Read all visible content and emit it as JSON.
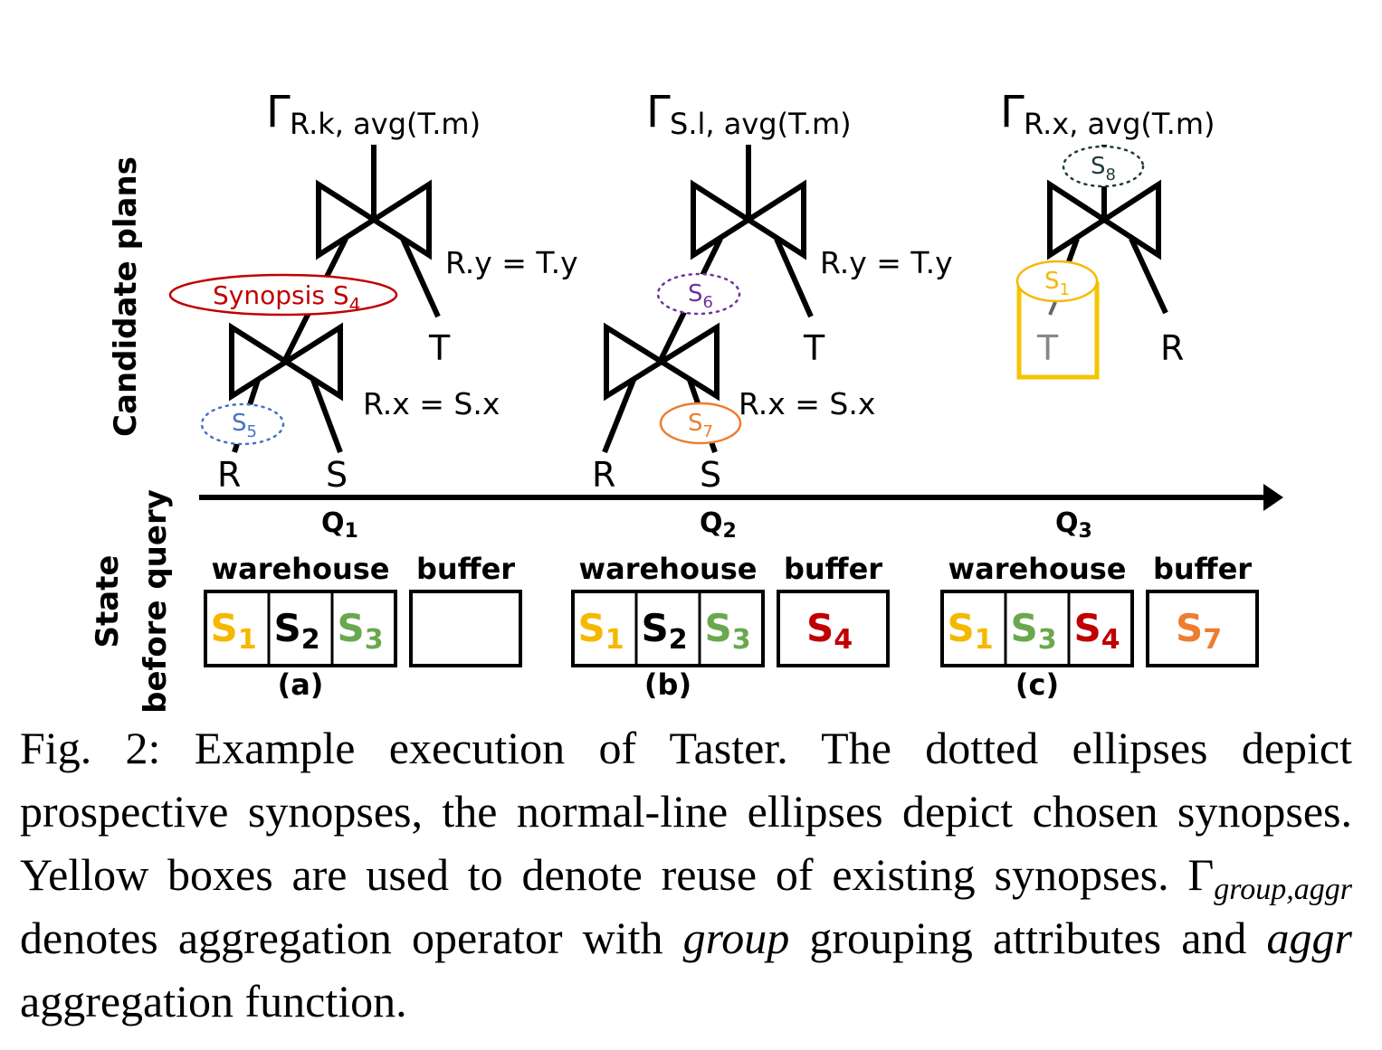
{
  "figure": {
    "side_labels": {
      "candidate_plans": "Candidate plans",
      "state_line1": "State",
      "state_line2": "before query"
    },
    "plans": [
      {
        "gamma": "Γ",
        "agg_label": "R.k, avg(T.m)",
        "top_condition": "R.y = T.y",
        "top_right_leaf": "T",
        "chosen_synopsis": "Synopsis S",
        "chosen_synopsis_sub": "4",
        "bottom_condition": "R.x = S.x",
        "prospective_synopsis": "S",
        "prospective_synopsis_sub": "5",
        "leaf_left": "R",
        "leaf_right": "S"
      },
      {
        "gamma": "Γ",
        "agg_label": "S.l, avg(T.m)",
        "top_condition": "R.y = T.y",
        "top_right_leaf": "T",
        "prospective_synopsis": "S",
        "prospective_synopsis_sub": "6",
        "chosen_synopsis": "S",
        "chosen_synopsis_sub": "7",
        "bottom_condition": "R.x = S.x",
        "leaf_left": "R",
        "leaf_right": "S"
      },
      {
        "gamma": "Γ",
        "agg_label": "R.x, avg(T.m)",
        "prospective_synopsis": "S",
        "prospective_synopsis_sub": "8",
        "reused_synopsis": "S",
        "reused_synopsis_sub": "1",
        "reused_leaf": "T",
        "right_leaf": "R"
      }
    ],
    "queries": [
      {
        "label": "Q",
        "sub": "1"
      },
      {
        "label": "Q",
        "sub": "2"
      },
      {
        "label": "Q",
        "sub": "3"
      }
    ],
    "states": [
      {
        "warehouse_label": "warehouse",
        "buffer_label": "buffer",
        "warehouse_items": [
          {
            "label": "S",
            "sub": "1",
            "color": "#F5B800"
          },
          {
            "label": "S",
            "sub": "2",
            "color": "#000000"
          },
          {
            "label": "S",
            "sub": "3",
            "color": "#6AA84F"
          }
        ],
        "buffer_items": [],
        "panel_label": "(a)"
      },
      {
        "warehouse_label": "warehouse",
        "buffer_label": "buffer",
        "warehouse_items": [
          {
            "label": "S",
            "sub": "1",
            "color": "#F5B800"
          },
          {
            "label": "S",
            "sub": "2",
            "color": "#000000"
          },
          {
            "label": "S",
            "sub": "3",
            "color": "#6AA84F"
          }
        ],
        "buffer_items": [
          {
            "label": "S",
            "sub": "4",
            "color": "#C00000"
          }
        ],
        "panel_label": "(b)"
      },
      {
        "warehouse_label": "warehouse",
        "buffer_label": "buffer",
        "warehouse_items": [
          {
            "label": "S",
            "sub": "1",
            "color": "#F5B800"
          },
          {
            "label": "S",
            "sub": "3",
            "color": "#6AA84F"
          },
          {
            "label": "S",
            "sub": "4",
            "color": "#C00000"
          }
        ],
        "buffer_items": [
          {
            "label": "S",
            "sub": "7",
            "color": "#ED7D31"
          }
        ],
        "panel_label": "(c)"
      }
    ],
    "colors": {
      "synopsis_s4": "#C00000",
      "synopsis_s5": "#4472C4",
      "synopsis_s6": "#7030A0",
      "synopsis_s7": "#ED7D31",
      "synopsis_s8": "#1F3B3B",
      "synopsis_s1": "#F5B800",
      "reuse_box": "#F5C400"
    }
  },
  "caption": {
    "part1": "Fig. 2: Example execution of Taster. The dotted ellipses depict prospective synopses, the normal-line ellipses depict chosen synopses. Yellow boxes are used to denote reuse of existing synopses. Γ",
    "sub1": "group,aggr",
    "part2": " denotes aggregation operator with ",
    "italic1": "group",
    "part3": " grouping attributes and ",
    "italic2": "aggr",
    "part4": " aggregation function."
  }
}
